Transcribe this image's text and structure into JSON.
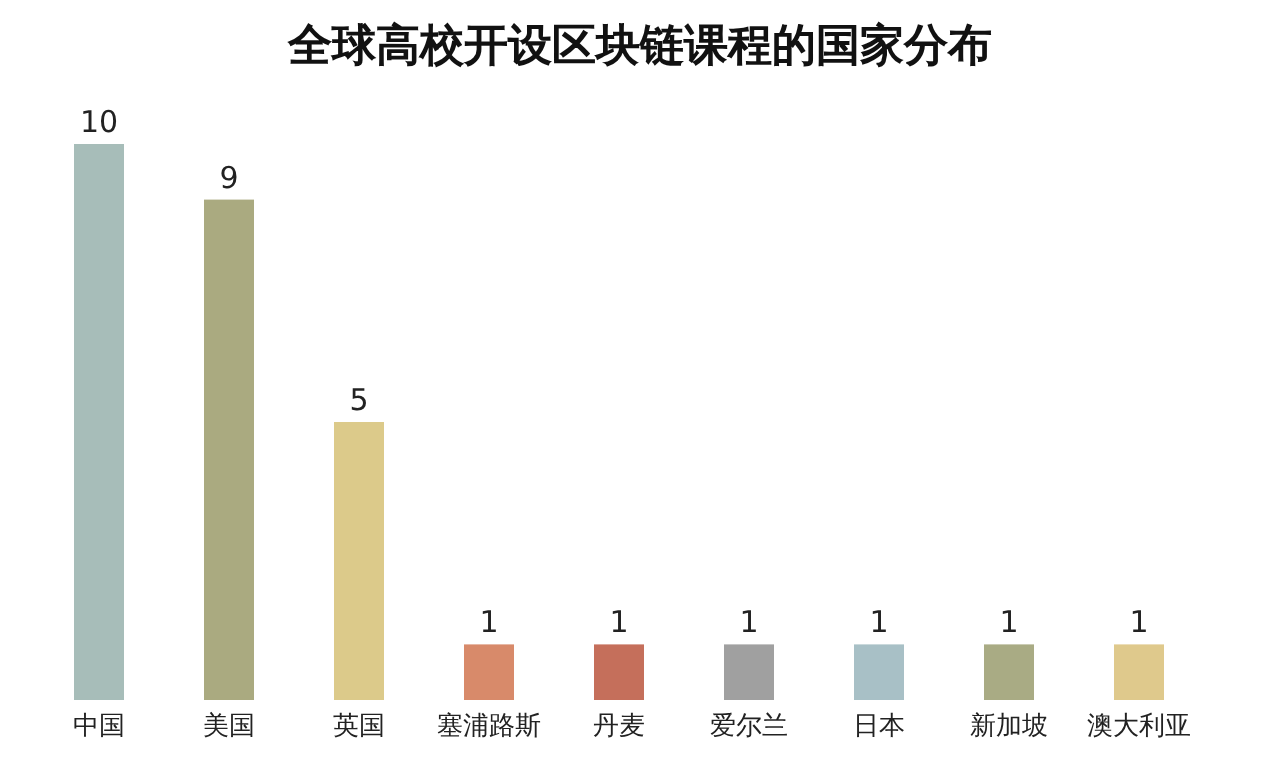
{
  "chart_data": {
    "type": "bar",
    "title": "全球高校开设区块链课程的国家分布",
    "categories": [
      "中国",
      "美国",
      "英国",
      "塞浦路斯",
      "丹麦",
      "爱尔兰",
      "日本",
      "新加坡",
      "澳大利亚"
    ],
    "values": [
      10,
      9,
      5,
      1,
      1,
      1,
      1,
      1,
      1
    ],
    "colors": [
      "#a7bdb9",
      "#aaaa80",
      "#dcca8a",
      "#d88a6a",
      "#c56f5b",
      "#a0a0a0",
      "#a8c0c6",
      "#a9ab84",
      "#dfc98c"
    ],
    "data_labels": true
  }
}
